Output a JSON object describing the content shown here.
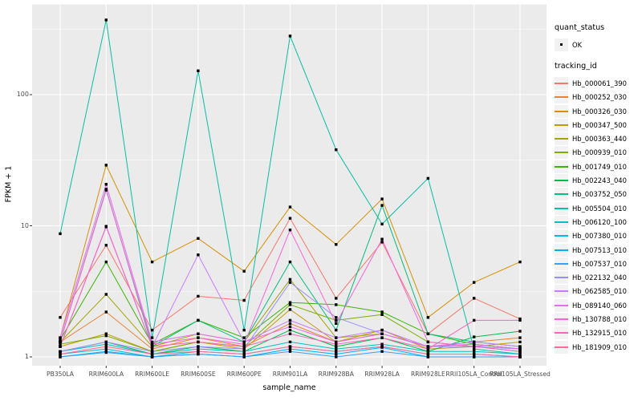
{
  "chart_data": {
    "type": "line",
    "title": "",
    "xlabel": "sample_name",
    "ylabel": "FPKM + 1",
    "y_scale": "log10",
    "y_ticks": [
      "1",
      "10",
      "100"
    ],
    "y_tick_values": [
      1,
      10,
      100
    ],
    "y_minor_values": [
      3.1623,
      31.623,
      316.23
    ],
    "ylim": [
      0.86,
      490
    ],
    "grid": true,
    "legend_position": "right",
    "categories": [
      "PB350LA",
      "RRIM600LA",
      "RRIM600LE",
      "RRIM600SE",
      "RRIM600PE",
      "RRIM901LA",
      "RRIM928BA",
      "RRIM928LA",
      "RRIM928LE",
      "RRII105LA_Control",
      "RRII105LA_Stressed"
    ],
    "series": [
      {
        "name": "Hb_000061_390",
        "color": "#F8766D",
        "values": [
          2.0,
          7.1,
          1.6,
          2.9,
          2.7,
          11.4,
          2.8,
          7.5,
          1.5,
          2.8,
          1.95
        ]
      },
      {
        "name": "Hb_000252_030",
        "color": "#EA8331",
        "values": [
          1.3,
          2.2,
          1.15,
          1.4,
          1.2,
          1.8,
          1.3,
          1.5,
          1.2,
          1.3,
          1.4
        ]
      },
      {
        "name": "Hb_000326_030",
        "color": "#D89000",
        "values": [
          1.4,
          29,
          5.3,
          8.0,
          4.5,
          13.9,
          7.2,
          16,
          2.0,
          3.7,
          5.3
        ]
      },
      {
        "name": "Hb_000347_500",
        "color": "#C09B00",
        "values": [
          1.2,
          1.5,
          1.1,
          1.3,
          1.15,
          2.3,
          1.3,
          1.6,
          1.15,
          1.2,
          1.3
        ]
      },
      {
        "name": "Hb_000363_440",
        "color": "#A3A500",
        "values": [
          1.3,
          3.0,
          1.2,
          1.5,
          1.3,
          3.9,
          1.4,
          1.5,
          1.2,
          1.25,
          1.15
        ]
      },
      {
        "name": "Hb_000939_010",
        "color": "#7CAE00",
        "values": [
          1.25,
          1.45,
          1.1,
          1.3,
          1.2,
          2.5,
          1.9,
          2.1,
          1.3,
          1.2,
          1.1
        ]
      },
      {
        "name": "Hb_001749_010",
        "color": "#39B600",
        "values": [
          1.35,
          5.3,
          1.25,
          1.9,
          1.4,
          2.6,
          2.5,
          2.2,
          1.5,
          1.25,
          1.15
        ]
      },
      {
        "name": "Hb_002243_040",
        "color": "#00BB4E",
        "values": [
          1.1,
          1.3,
          1.05,
          1.2,
          1.1,
          1.6,
          1.2,
          1.4,
          1.1,
          1.42,
          1.57
        ]
      },
      {
        "name": "Hb_003752_050",
        "color": "#00BF7D",
        "values": [
          1.3,
          19,
          1.2,
          1.9,
          1.3,
          5.3,
          1.6,
          14.3,
          1.5,
          1.3,
          1.2
        ]
      },
      {
        "name": "Hb_005504_010",
        "color": "#00C1A3",
        "values": [
          8.7,
          371,
          1.4,
          152,
          1.6,
          280,
          38,
          10.3,
          23,
          1.15,
          1.05
        ]
      },
      {
        "name": "Hb_006120_100",
        "color": "#00BFC4",
        "values": [
          1.1,
          1.25,
          1.05,
          1.15,
          1.1,
          1.3,
          1.15,
          1.25,
          1.1,
          1.1,
          1.05
        ]
      },
      {
        "name": "Hb_007380_010",
        "color": "#00BAE0",
        "values": [
          1.05,
          1.15,
          1.0,
          1.1,
          1.05,
          1.2,
          1.1,
          1.2,
          1.05,
          1.05,
          1.0
        ]
      },
      {
        "name": "Hb_007513_010",
        "color": "#00B0F6",
        "values": [
          1.0,
          1.1,
          1.0,
          1.05,
          1.0,
          1.15,
          1.05,
          1.18,
          1.0,
          1.0,
          1.0
        ]
      },
      {
        "name": "Hb_007537_010",
        "color": "#35A2FF",
        "values": [
          1.0,
          1.08,
          1.0,
          1.05,
          1.0,
          1.1,
          1.0,
          1.1,
          1.0,
          1.0,
          1.0
        ]
      },
      {
        "name": "Hb_022132_040",
        "color": "#9590FF",
        "values": [
          1.1,
          1.3,
          1.1,
          1.2,
          1.15,
          3.7,
          2.0,
          1.5,
          1.2,
          1.2,
          1.15
        ]
      },
      {
        "name": "Hb_062585_010",
        "color": "#C77CFF",
        "values": [
          1.2,
          9.8,
          1.2,
          6.0,
          1.3,
          1.9,
          1.4,
          1.6,
          1.2,
          1.3,
          1.2
        ]
      },
      {
        "name": "Hb_089140_060",
        "color": "#E76BF3",
        "values": [
          1.4,
          20.7,
          1.3,
          1.5,
          1.3,
          1.7,
          1.3,
          1.5,
          1.2,
          1.25,
          1.15
        ]
      },
      {
        "name": "Hb_130788_010",
        "color": "#FA62DB",
        "values": [
          1.3,
          18.7,
          1.25,
          1.4,
          1.25,
          9.3,
          1.8,
          7.9,
          1.3,
          1.2,
          1.1
        ]
      },
      {
        "name": "Hb_132915_010",
        "color": "#FF62BC",
        "values": [
          1.2,
          9.9,
          1.2,
          1.3,
          1.2,
          1.5,
          1.25,
          1.4,
          1.15,
          1.9,
          1.9
        ]
      },
      {
        "name": "Hb_181909_010",
        "color": "#FF6A98",
        "values": [
          1.05,
          1.2,
          1.05,
          1.1,
          1.05,
          1.2,
          1.1,
          1.2,
          1.05,
          1.05,
          1.0
        ]
      }
    ],
    "colors": {
      "panel_bg": "#EBEBEB",
      "grid": "#FFFFFF",
      "point": "#000000",
      "axis_text": "#4D4D4D",
      "tick_mark": "#333333",
      "legend_key_bg": "#F2F2F2"
    }
  },
  "legend": {
    "quant_status_title": "quant_status",
    "quant_status_items": [
      {
        "label": "OK"
      }
    ],
    "tracking_title": "tracking_id"
  }
}
